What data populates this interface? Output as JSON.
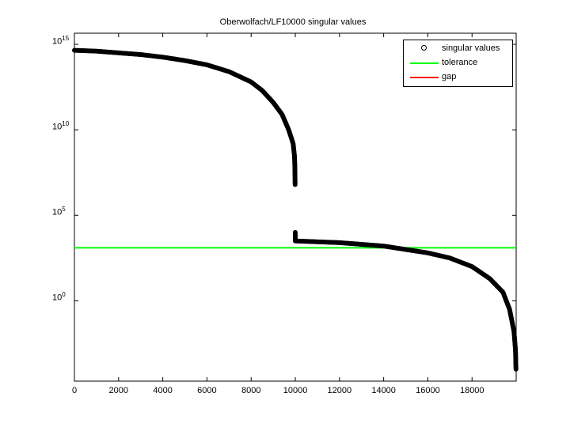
{
  "chart_data": {
    "type": "scatter",
    "title": "Oberwolfach/LF10000 singular values",
    "xlabel": "",
    "ylabel": "",
    "yscale": "log",
    "xlim": [
      0,
      19998
    ],
    "ylim_log10": [
      -4.7,
      15.65
    ],
    "x_ticks": [
      0,
      2000,
      4000,
      6000,
      8000,
      10000,
      12000,
      14000,
      16000,
      18000
    ],
    "y_ticks": [
      "10^0",
      "10^5",
      "10^10",
      "10^15"
    ],
    "grid": false,
    "legend_position": "northeast",
    "legend": [
      "singular values",
      "tolerance",
      "gap"
    ],
    "series": [
      {
        "name": "singular values",
        "style": "black circles",
        "points_log10": [
          [
            0,
            14.65
          ],
          [
            1000,
            14.6
          ],
          [
            2000,
            14.5
          ],
          [
            3000,
            14.4
          ],
          [
            4000,
            14.25
          ],
          [
            5000,
            14.05
          ],
          [
            6000,
            13.8
          ],
          [
            7000,
            13.4
          ],
          [
            8000,
            12.8
          ],
          [
            8500,
            12.3
          ],
          [
            9000,
            11.6
          ],
          [
            9400,
            10.9
          ],
          [
            9700,
            10.0
          ],
          [
            9900,
            9.2
          ],
          [
            9960,
            8.5
          ],
          [
            9970,
            8.2
          ],
          [
            9975,
            8.0
          ],
          [
            9980,
            7.7
          ],
          [
            9985,
            7.4
          ],
          [
            9990,
            6.8
          ],
          [
            9995,
            4.0
          ],
          [
            10000,
            3.5
          ],
          [
            11000,
            3.45
          ],
          [
            12000,
            3.4
          ],
          [
            13000,
            3.3
          ],
          [
            14000,
            3.2
          ],
          [
            15000,
            3.0
          ],
          [
            16000,
            2.8
          ],
          [
            17000,
            2.5
          ],
          [
            18000,
            2.0
          ],
          [
            18800,
            1.3
          ],
          [
            19400,
            0.5
          ],
          [
            19700,
            -0.5
          ],
          [
            19900,
            -1.8
          ],
          [
            19950,
            -2.6
          ],
          [
            19970,
            -3.0
          ],
          [
            19980,
            -3.6
          ],
          [
            19990,
            -4.0
          ]
        ]
      },
      {
        "name": "tolerance",
        "color": "#00ff00",
        "value_log10": 3.1
      },
      {
        "name": "gap",
        "color": "#ff0000",
        "value_log10": null
      }
    ]
  },
  "labels": {
    "title": "Oberwolfach/LF10000 singular values",
    "y": [
      "10",
      "10",
      "10",
      "10"
    ],
    "y_exp": [
      "15",
      "10",
      "5",
      "0"
    ],
    "x": [
      "0",
      "2000",
      "4000",
      "6000",
      "8000",
      "10000",
      "12000",
      "14000",
      "16000",
      "18000"
    ],
    "legend": [
      "singular values",
      "tolerance",
      "gap"
    ]
  },
  "colors": {
    "tolerance": "#00ff00",
    "gap": "#ff0000",
    "points": "#000000"
  }
}
